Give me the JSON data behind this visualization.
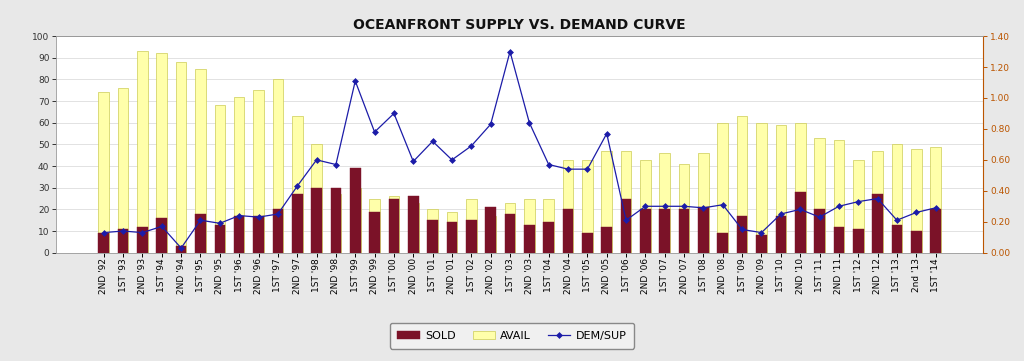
{
  "title": "OCEANFRONT SUPPLY VS. DEMAND CURVE",
  "categories": [
    "2ND '92",
    "1ST '93",
    "2ND '93",
    "1ST '94",
    "2ND '94",
    "1ST '95",
    "2ND '95",
    "1ST '96",
    "2ND '96",
    "1ST '97",
    "2ND '97",
    "1ST '98",
    "2ND '98",
    "1ST '99",
    "2ND '99",
    "1ST '00",
    "2ND '00",
    "1ST '01",
    "2ND '01",
    "1ST '02",
    "2ND '02",
    "1ST '03",
    "2ND '03",
    "1ST '04",
    "2ND '04",
    "1ST '05",
    "2ND '05",
    "1ST '06",
    "2ND '06",
    "1ST '07",
    "2ND '07",
    "1ST '08",
    "2ND '08",
    "1ST '09",
    "2ND '09",
    "1ST '10",
    "2ND '10",
    "1ST '11",
    "2ND '11",
    "1ST '12",
    "2ND '12",
    "1ST '13",
    "2nd '13",
    "1ST '14"
  ],
  "avail": [
    74,
    76,
    93,
    92,
    88,
    85,
    68,
    72,
    75,
    80,
    63,
    50,
    27,
    30,
    25,
    26,
    23,
    20,
    19,
    25,
    17,
    23,
    25,
    25,
    43,
    43,
    47,
    47,
    43,
    46,
    41,
    46,
    60,
    63,
    60,
    59,
    60,
    53,
    52,
    43,
    47,
    50,
    48,
    49
  ],
  "sold": [
    9,
    11,
    12,
    16,
    3,
    18,
    13,
    17,
    17,
    20,
    27,
    30,
    30,
    39,
    19,
    25,
    26,
    15,
    14,
    15,
    21,
    18,
    13,
    14,
    20,
    9,
    12,
    25,
    20,
    20,
    20,
    21,
    9,
    17,
    8,
    17,
    28,
    20,
    12,
    11,
    27,
    13,
    10,
    20
  ],
  "dem_sup": [
    0.13,
    0.14,
    0.13,
    0.17,
    0.03,
    0.21,
    0.19,
    0.24,
    0.23,
    0.25,
    0.43,
    0.6,
    0.57,
    1.11,
    0.78,
    0.9,
    0.59,
    0.72,
    0.6,
    0.69,
    0.83,
    1.3,
    0.84,
    0.57,
    0.54,
    0.54,
    0.77,
    0.21,
    0.3,
    0.3,
    0.3,
    0.29,
    0.31,
    0.15,
    0.13,
    0.25,
    0.28,
    0.23,
    0.3,
    0.33,
    0.35,
    0.21,
    0.26,
    0.29
  ],
  "avail_color": "#FFFFAA",
  "avail_edge_color": "#CCCC55",
  "sold_color": "#7B1228",
  "line_color": "#1C1CA8",
  "marker_color": "#1C1CA8",
  "background_color": "#E8E8E8",
  "plot_background": "#FFFFFF",
  "title_fontsize": 10,
  "tick_fontsize": 6.5,
  "legend_fontsize": 8,
  "ylim_left": [
    0,
    100
  ],
  "ylim_right": [
    0.0,
    1.4
  ],
  "yticks_left": [
    0,
    10,
    20,
    30,
    40,
    50,
    60,
    70,
    80,
    90,
    100
  ],
  "yticks_right": [
    0.0,
    0.2,
    0.4,
    0.6,
    0.8,
    1.0,
    1.2,
    1.4
  ]
}
